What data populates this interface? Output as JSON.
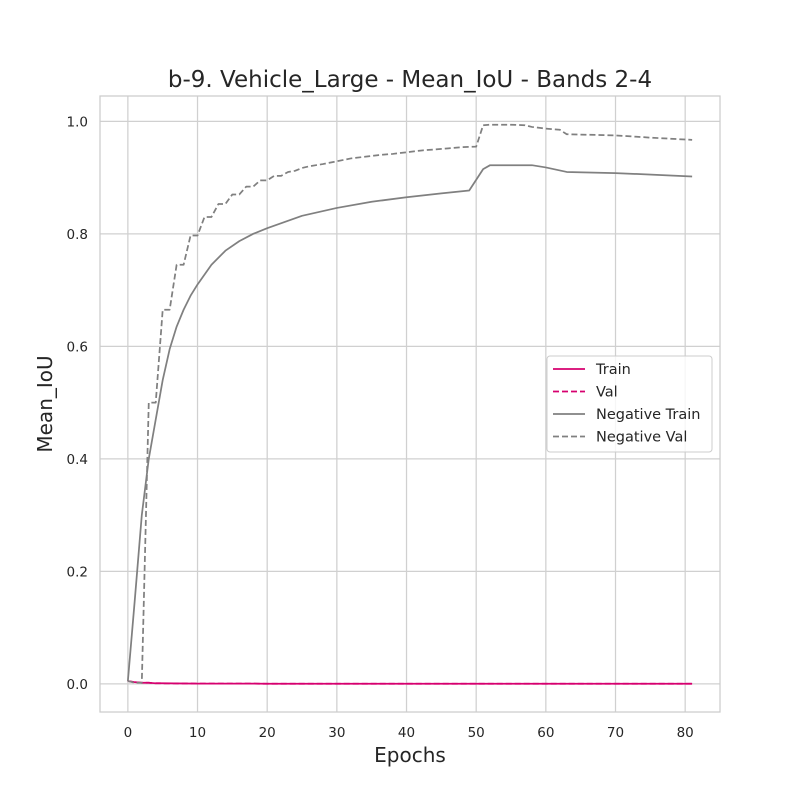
{
  "chart_data": {
    "type": "line",
    "title": "b-9. Vehicle_Large - Mean_IoU - Bands 2-4",
    "xlabel": "Epochs",
    "ylabel": "Mean_IoU",
    "xlim": [
      -4,
      85
    ],
    "ylim": [
      -0.05,
      1.045
    ],
    "xticks": [
      0,
      10,
      20,
      30,
      40,
      50,
      60,
      70,
      80
    ],
    "yticks": [
      0.0,
      0.2,
      0.4,
      0.6,
      0.8,
      1.0
    ],
    "ytick_labels": [
      "0.0",
      "0.2",
      "0.4",
      "0.6",
      "0.8",
      "1.0"
    ],
    "grid": true,
    "legend_position": "center-right",
    "series": [
      {
        "name": "Train",
        "color": "#d6006f",
        "style": "solid",
        "x": [
          0,
          1,
          2,
          3,
          4,
          5,
          10,
          20,
          30,
          40,
          50,
          60,
          70,
          81
        ],
        "y": [
          0.005,
          0.003,
          0.002,
          0.002,
          0.001,
          0.001,
          0.0005,
          0.0003,
          0.0002,
          0.0002,
          0.0002,
          0.0002,
          0.0002,
          0.0002
        ]
      },
      {
        "name": "Val",
        "color": "#d6006f",
        "style": "dashed",
        "x": [
          0,
          1,
          2,
          3,
          4,
          5,
          10,
          20,
          30,
          40,
          50,
          60,
          70,
          81
        ],
        "y": [
          0.005,
          0.003,
          0.002,
          0.002,
          0.001,
          0.001,
          0.0005,
          0.0003,
          0.0002,
          0.0002,
          0.0002,
          0.0002,
          0.0002,
          0.0002
        ]
      },
      {
        "name": "Negative Train",
        "color": "#808080",
        "style": "solid",
        "x": [
          0,
          1,
          2,
          3,
          4,
          5,
          6,
          7,
          8,
          9,
          10,
          12,
          14,
          16,
          18,
          20,
          25,
          30,
          35,
          40,
          45,
          49,
          51,
          52,
          58,
          60,
          63,
          70,
          81
        ],
        "y": [
          0.005,
          0.15,
          0.3,
          0.4,
          0.47,
          0.54,
          0.595,
          0.635,
          0.665,
          0.69,
          0.71,
          0.745,
          0.77,
          0.787,
          0.8,
          0.81,
          0.832,
          0.846,
          0.857,
          0.865,
          0.872,
          0.877,
          0.915,
          0.922,
          0.922,
          0.918,
          0.91,
          0.908,
          0.902
        ]
      },
      {
        "name": "Negative Val",
        "color": "#808080",
        "style": "dashed",
        "x": [
          0,
          1,
          2,
          3,
          4,
          5,
          6,
          7,
          8,
          9,
          10,
          11,
          12,
          13,
          14,
          15,
          16,
          17,
          18,
          19,
          20,
          21,
          22,
          23,
          24,
          25,
          26,
          27,
          28,
          30,
          32,
          34,
          36,
          38,
          40,
          42,
          44,
          46,
          48,
          50,
          51,
          52,
          55,
          57,
          58,
          60,
          62,
          63,
          70,
          75,
          81
        ],
        "y": [
          0.005,
          0.002,
          0.002,
          0.5,
          0.5,
          0.665,
          0.665,
          0.745,
          0.745,
          0.797,
          0.797,
          0.83,
          0.83,
          0.853,
          0.853,
          0.87,
          0.87,
          0.884,
          0.884,
          0.895,
          0.895,
          0.903,
          0.903,
          0.91,
          0.912,
          0.917,
          0.92,
          0.922,
          0.924,
          0.929,
          0.934,
          0.937,
          0.94,
          0.942,
          0.945,
          0.948,
          0.95,
          0.952,
          0.954,
          0.955,
          0.993,
          0.994,
          0.994,
          0.993,
          0.99,
          0.987,
          0.985,
          0.977,
          0.975,
          0.971,
          0.967
        ]
      }
    ]
  }
}
